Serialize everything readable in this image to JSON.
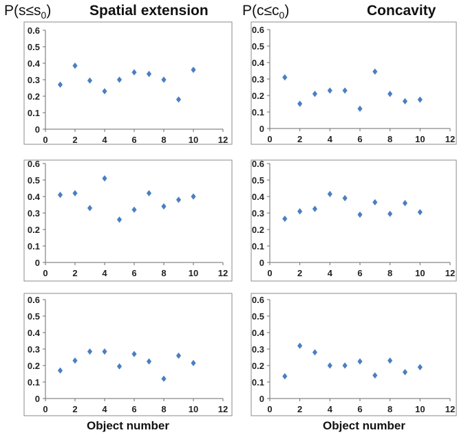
{
  "headers": {
    "left_prob": "P(s≤s",
    "left_sub": "0",
    "left_close": ")",
    "left_title": "Spatial extension",
    "right_prob": "P(c≤c",
    "right_sub": "0",
    "right_close": ")",
    "right_title": "Concavity"
  },
  "xlabel": "Object number",
  "colors": {
    "marker": "#4a7fc1",
    "axis": "#6a6a6a",
    "frame": "#8a8a8a"
  },
  "chart_data": [
    {
      "type": "scatter",
      "column": "Spatial extension",
      "row": 1,
      "x": [
        1,
        2,
        3,
        4,
        5,
        6,
        7,
        8,
        9,
        10
      ],
      "y": [
        0.27,
        0.385,
        0.295,
        0.23,
        0.3,
        0.345,
        0.335,
        0.3,
        0.18,
        0.36
      ],
      "xlim": [
        0,
        12
      ],
      "ylim": [
        0,
        0.6
      ],
      "xticks": [
        "0",
        "2",
        "4",
        "6",
        "8",
        "10",
        "12"
      ],
      "yticks": [
        "0",
        "0.1",
        "0.2",
        "0.3",
        "0.4",
        "0.5",
        "0.6"
      ]
    },
    {
      "type": "scatter",
      "column": "Concavity",
      "row": 1,
      "x": [
        1,
        2,
        3,
        4,
        5,
        6,
        7,
        8,
        9,
        10
      ],
      "y": [
        0.31,
        0.15,
        0.21,
        0.23,
        0.23,
        0.12,
        0.345,
        0.21,
        0.165,
        0.175
      ],
      "xlim": [
        0,
        12
      ],
      "ylim": [
        0,
        0.6
      ],
      "xticks": [
        "0",
        "2",
        "4",
        "6",
        "8",
        "10",
        "12"
      ],
      "yticks": [
        "0",
        "0.1",
        "0.2",
        "0.3",
        "0.4",
        "0.5",
        "0.6"
      ]
    },
    {
      "type": "scatter",
      "column": "Spatial extension",
      "row": 2,
      "x": [
        1,
        2,
        3,
        4,
        5,
        6,
        7,
        8,
        9,
        10
      ],
      "y": [
        0.41,
        0.42,
        0.33,
        0.51,
        0.26,
        0.32,
        0.42,
        0.34,
        0.38,
        0.4
      ],
      "xlim": [
        0,
        12
      ],
      "ylim": [
        0,
        0.6
      ],
      "xticks": [
        "0",
        "2",
        "4",
        "6",
        "8",
        "10",
        "12"
      ],
      "yticks": [
        "0",
        "0.1",
        "0.2",
        "0.3",
        "0.4",
        "0.5",
        "0.6"
      ]
    },
    {
      "type": "scatter",
      "column": "Concavity",
      "row": 2,
      "x": [
        1,
        2,
        3,
        4,
        5,
        6,
        7,
        8,
        9,
        10
      ],
      "y": [
        0.265,
        0.31,
        0.325,
        0.415,
        0.39,
        0.29,
        0.365,
        0.295,
        0.36,
        0.305
      ],
      "xlim": [
        0,
        12
      ],
      "ylim": [
        0,
        0.6
      ],
      "xticks": [
        "0",
        "2",
        "4",
        "6",
        "8",
        "10",
        "12"
      ],
      "yticks": [
        "0",
        "0.1",
        "0.2",
        "0.3",
        "0.4",
        "0.5",
        "0.6"
      ]
    },
    {
      "type": "scatter",
      "column": "Spatial extension",
      "row": 3,
      "x": [
        1,
        2,
        3,
        4,
        5,
        6,
        7,
        8,
        9,
        10
      ],
      "y": [
        0.17,
        0.23,
        0.285,
        0.285,
        0.195,
        0.27,
        0.225,
        0.12,
        0.26,
        0.215
      ],
      "xlim": [
        0,
        12
      ],
      "ylim": [
        0,
        0.6
      ],
      "xticks": [
        "0",
        "2",
        "4",
        "6",
        "8",
        "10",
        "12"
      ],
      "yticks": [
        "0",
        "0.1",
        "0.2",
        "0.3",
        "0.4",
        "0.5",
        "0.6"
      ]
    },
    {
      "type": "scatter",
      "column": "Concavity",
      "row": 3,
      "x": [
        1,
        2,
        3,
        4,
        5,
        6,
        7,
        8,
        9,
        10
      ],
      "y": [
        0.135,
        0.32,
        0.28,
        0.2,
        0.2,
        0.225,
        0.14,
        0.23,
        0.16,
        0.19
      ],
      "xlim": [
        0,
        12
      ],
      "ylim": [
        0,
        0.6
      ],
      "xticks": [
        "0",
        "2",
        "4",
        "6",
        "8",
        "10",
        "12"
      ],
      "yticks": [
        "0",
        "0.1",
        "0.2",
        "0.3",
        "0.4",
        "0.5",
        "0.6"
      ]
    }
  ]
}
